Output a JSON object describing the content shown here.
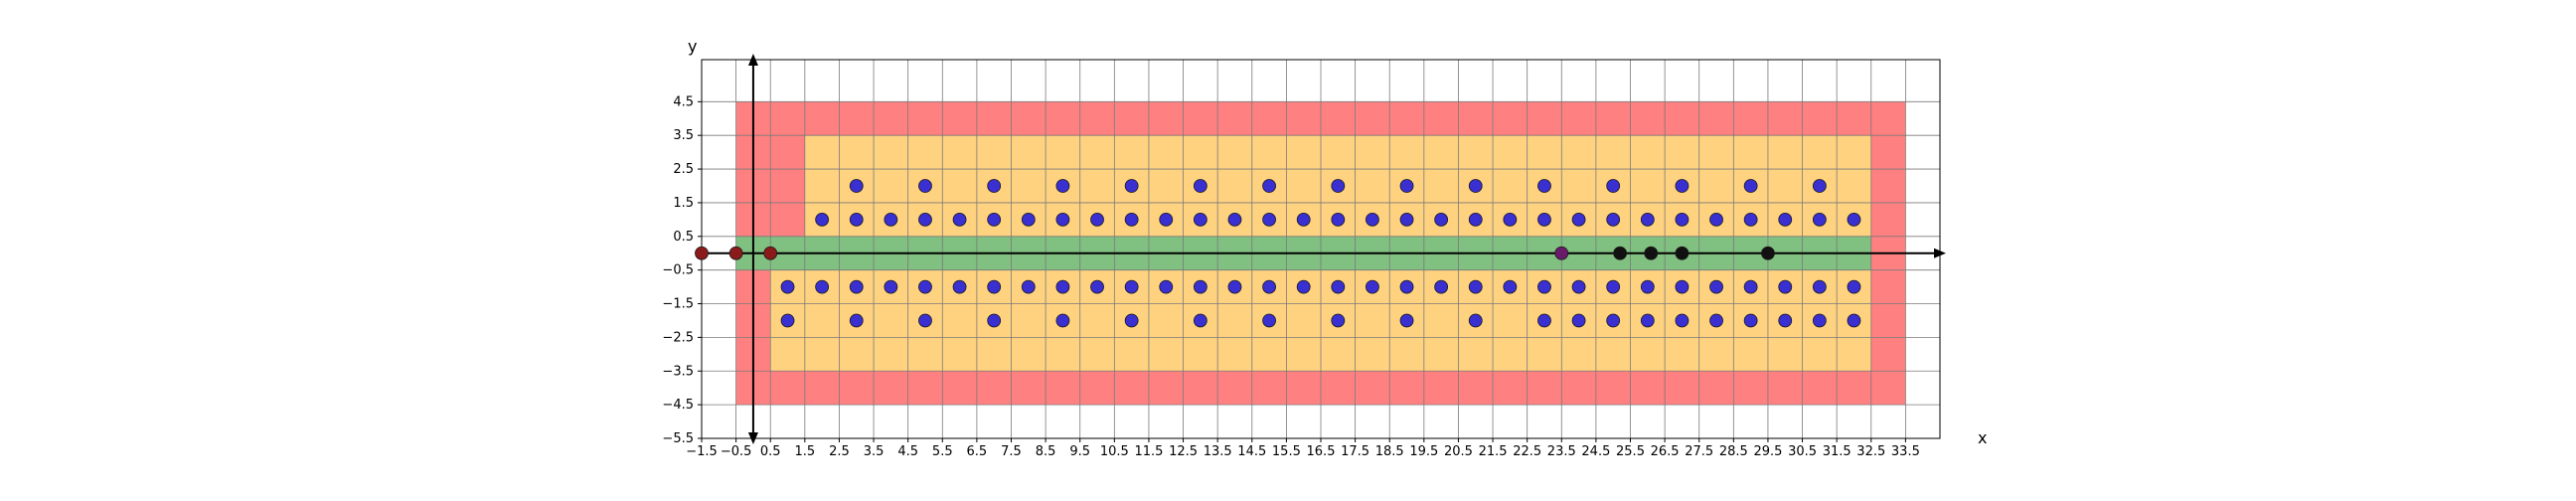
{
  "chart_data": {
    "type": "scatter",
    "title": "",
    "xlabel": "x",
    "ylabel": "y",
    "xlim": [
      -1.5,
      34.5
    ],
    "ylim": [
      -5.5,
      5.75
    ],
    "grid": true,
    "x_ticks": [
      "−1.5",
      "−0.5",
      "0.5",
      "1.5",
      "2.5",
      "3.5",
      "4.5",
      "5.5",
      "6.5",
      "7.5",
      "8.5",
      "9.5",
      "10.5",
      "11.5",
      "12.5",
      "13.5",
      "14.5",
      "15.5",
      "16.5",
      "17.5",
      "18.5",
      "19.5",
      "20.5",
      "21.5",
      "22.5",
      "23.5",
      "24.5",
      "25.5",
      "26.5",
      "27.5",
      "28.5",
      "29.5",
      "30.5",
      "31.5",
      "32.5",
      "33.5"
    ],
    "y_ticks": [
      "4.5",
      "3.5",
      "2.5",
      "1.5",
      "0.5",
      "−0.5",
      "−1.5",
      "−2.5",
      "−3.5",
      "−4.5",
      "−5.5"
    ],
    "regions": [
      {
        "color": "#ff8080",
        "x": [
          -0.5,
          33.5
        ],
        "y": [
          -4.5,
          4.5
        ]
      },
      {
        "color": "#ffd280",
        "x": [
          1.5,
          32.5
        ],
        "y": [
          0.5,
          3.5
        ]
      },
      {
        "color": "#ffd280",
        "x": [
          0.5,
          32.5
        ],
        "y": [
          -3.5,
          -0.5
        ]
      },
      {
        "color": "#80c080",
        "x": [
          -0.5,
          32.5
        ],
        "y": [
          -0.5,
          0.5
        ]
      }
    ],
    "point_groups": [
      {
        "color": "#3a2fd0",
        "points": [
          [
            3,
            2
          ],
          [
            5,
            2
          ],
          [
            7,
            2
          ],
          [
            9,
            2
          ],
          [
            11,
            2
          ],
          [
            13,
            2
          ],
          [
            15,
            2
          ],
          [
            17,
            2
          ],
          [
            19,
            2
          ],
          [
            21,
            2
          ],
          [
            23,
            2
          ],
          [
            25,
            2
          ],
          [
            27,
            2
          ],
          [
            29,
            2
          ],
          [
            31,
            2
          ],
          [
            2,
            1
          ],
          [
            3,
            1
          ],
          [
            4,
            1
          ],
          [
            5,
            1
          ],
          [
            6,
            1
          ],
          [
            7,
            1
          ],
          [
            8,
            1
          ],
          [
            9,
            1
          ],
          [
            10,
            1
          ],
          [
            11,
            1
          ],
          [
            12,
            1
          ],
          [
            13,
            1
          ],
          [
            14,
            1
          ],
          [
            15,
            1
          ],
          [
            16,
            1
          ],
          [
            17,
            1
          ],
          [
            18,
            1
          ],
          [
            19,
            1
          ],
          [
            20,
            1
          ],
          [
            21,
            1
          ],
          [
            22,
            1
          ],
          [
            23,
            1
          ],
          [
            24,
            1
          ],
          [
            25,
            1
          ],
          [
            26,
            1
          ],
          [
            27,
            1
          ],
          [
            28,
            1
          ],
          [
            29,
            1
          ],
          [
            30,
            1
          ],
          [
            31,
            1
          ],
          [
            32,
            1
          ],
          [
            1,
            -1
          ],
          [
            2,
            -1
          ],
          [
            3,
            -1
          ],
          [
            4,
            -1
          ],
          [
            5,
            -1
          ],
          [
            6,
            -1
          ],
          [
            7,
            -1
          ],
          [
            8,
            -1
          ],
          [
            9,
            -1
          ],
          [
            10,
            -1
          ],
          [
            11,
            -1
          ],
          [
            12,
            -1
          ],
          [
            13,
            -1
          ],
          [
            14,
            -1
          ],
          [
            15,
            -1
          ],
          [
            16,
            -1
          ],
          [
            17,
            -1
          ],
          [
            18,
            -1
          ],
          [
            19,
            -1
          ],
          [
            20,
            -1
          ],
          [
            21,
            -1
          ],
          [
            22,
            -1
          ],
          [
            23,
            -1
          ],
          [
            24,
            -1
          ],
          [
            25,
            -1
          ],
          [
            26,
            -1
          ],
          [
            27,
            -1
          ],
          [
            28,
            -1
          ],
          [
            29,
            -1
          ],
          [
            30,
            -1
          ],
          [
            31,
            -1
          ],
          [
            32,
            -1
          ],
          [
            1,
            -2
          ],
          [
            3,
            -2
          ],
          [
            5,
            -2
          ],
          [
            7,
            -2
          ],
          [
            9,
            -2
          ],
          [
            11,
            -2
          ],
          [
            13,
            -2
          ],
          [
            15,
            -2
          ],
          [
            17,
            -2
          ],
          [
            19,
            -2
          ],
          [
            21,
            -2
          ],
          [
            23,
            -2
          ],
          [
            24,
            -2
          ],
          [
            25,
            -2
          ],
          [
            26,
            -2
          ],
          [
            27,
            -2
          ],
          [
            28,
            -2
          ],
          [
            29,
            -2
          ],
          [
            30,
            -2
          ],
          [
            31,
            -2
          ],
          [
            32,
            -2
          ]
        ]
      },
      {
        "color": "#8b1a1a",
        "points": [
          [
            -1.5,
            0
          ],
          [
            -0.5,
            0
          ],
          [
            0.5,
            0
          ]
        ]
      },
      {
        "color": "#6a1a6a",
        "points": [
          [
            23.5,
            0
          ]
        ]
      },
      {
        "color": "#111111",
        "points": [
          [
            25.2,
            0
          ],
          [
            26.1,
            0
          ],
          [
            27,
            0
          ],
          [
            29.5,
            0
          ]
        ]
      }
    ]
  }
}
